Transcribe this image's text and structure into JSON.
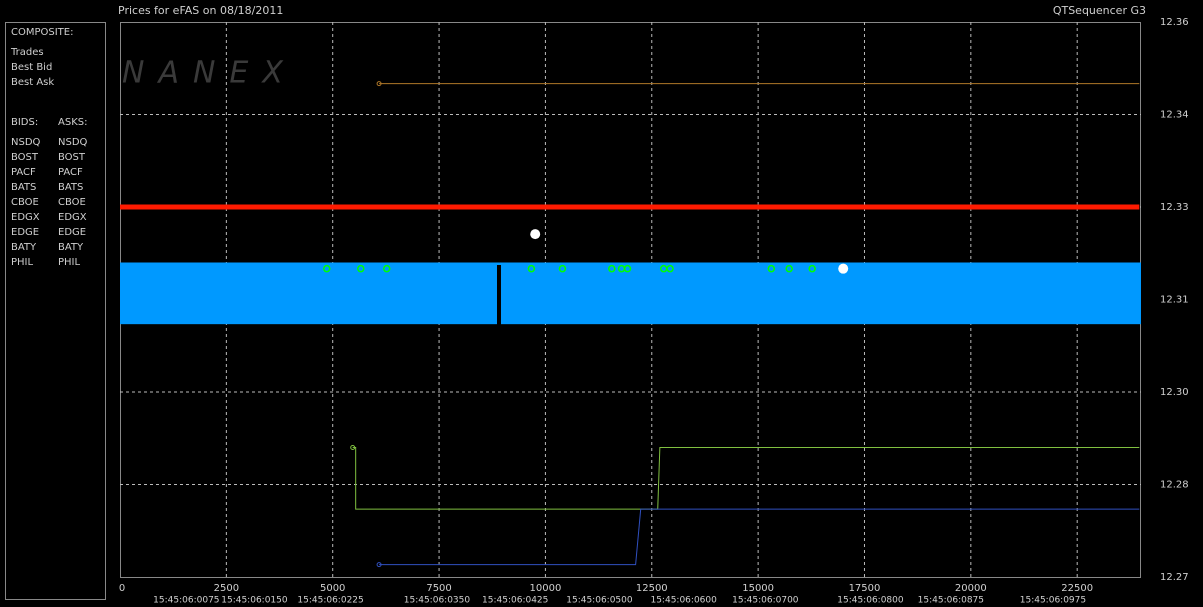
{
  "chart_data": {
    "type": "line",
    "title": "Prices for  eFAS  on  08/18/2011",
    "app_name": "QTSequencer G3",
    "watermark": "NANEX",
    "legend": {
      "composite_header": "COMPOSITE:",
      "composite": [
        {
          "label": "Trades",
          "color": "#ffffff"
        },
        {
          "label": "Best Bid",
          "color": "#00ff00"
        },
        {
          "label": "Best Ask",
          "color": "#ff2020"
        }
      ],
      "bids_header": "BIDS:",
      "asks_header": "ASKS:",
      "exchanges": [
        {
          "name": "NSDQ",
          "bid_color": "#4a7cff",
          "ask_color": "#ff9040"
        },
        {
          "name": "BOST",
          "bid_color": "#90e070",
          "ask_color": "#f08060"
        },
        {
          "name": "PACF",
          "bid_color": "#40e0e0",
          "ask_color": "#ffff60"
        },
        {
          "name": "BATS",
          "bid_color": "#80c0ff",
          "ask_color": "#ffe080"
        },
        {
          "name": "CBOE",
          "bid_color": "#3050c0",
          "ask_color": "#c8c8c8"
        },
        {
          "name": "EDGX",
          "bid_color": "#30a030",
          "ask_color": "#808080"
        },
        {
          "name": "EDGE",
          "bid_color": "#60c060",
          "ask_color": "#e08060"
        },
        {
          "name": "BATY",
          "bid_color": "#6080ff",
          "ask_color": "#d06040"
        },
        {
          "name": "PHIL",
          "bid_color": "#70a030",
          "ask_color": "#e04060"
        }
      ]
    },
    "xlim": [
      0,
      24000
    ],
    "xticks": [
      0,
      2500,
      5000,
      7500,
      10000,
      12500,
      15000,
      17500,
      20000,
      22500
    ],
    "time_ticks": [
      {
        "value": 1560,
        "label": "15:45:06:0075"
      },
      {
        "value": 3160,
        "label": "15:45:06:0150"
      },
      {
        "value": 4950,
        "label": "15:45:06:0225"
      },
      {
        "value": 7450,
        "label": "15:45:06:0350"
      },
      {
        "value": 9290,
        "label": "15:45:06:0425"
      },
      {
        "value": 11270,
        "label": "15:45:06:0500"
      },
      {
        "value": 13250,
        "label": "15:45:06:0600"
      },
      {
        "value": 15170,
        "label": "15:45:06:0700"
      },
      {
        "value": 17640,
        "label": "15:45:06:0800"
      },
      {
        "value": 19530,
        "label": "15:45:06:0875"
      },
      {
        "value": 21930,
        "label": "15:45:06:0975"
      }
    ],
    "ylim": [
      12.27,
      12.36
    ],
    "yticks": [
      12.36,
      {
        "value": 12.345,
        "label": "12.34"
      },
      12.33,
      {
        "value": 12.315,
        "label": "12.31"
      },
      {
        "value": 12.3,
        "label": "12.30"
      },
      {
        "value": 12.285,
        "label": "12.28"
      },
      12.27
    ],
    "grid": true,
    "series": [
      {
        "kind": "band",
        "color": "#0099ff",
        "x": [
          0,
          24000
        ],
        "low": [
          12.311,
          12.311
        ],
        "values": [
          12.321,
          12.321
        ]
      },
      {
        "kind": "thick-line",
        "color": "#ff1a00",
        "x": [
          0,
          23960
        ],
        "values": [
          12.33,
          12.33
        ]
      },
      {
        "kind": "line",
        "color": "#b07828",
        "x": [
          6090,
          23960
        ],
        "values": [
          12.35,
          12.35
        ]
      },
      {
        "kind": "line",
        "color": "#80c040",
        "x": [
          5470,
          5540,
          5540,
          12640,
          12690,
          23960
        ],
        "values": [
          12.291,
          12.291,
          12.281,
          12.281,
          12.291,
          12.291
        ]
      },
      {
        "kind": "line",
        "color": "#3050c0",
        "x": [
          6090,
          12120,
          12240,
          23960
        ],
        "values": [
          12.272,
          12.272,
          12.281,
          12.281
        ]
      },
      {
        "kind": "markers",
        "color": "#00ff00",
        "x": [
          4860,
          5660,
          6270,
          9670,
          10400,
          11560,
          11790,
          11930,
          12780,
          12930,
          15310,
          15730,
          16270
        ],
        "values": [
          12.32,
          12.32,
          12.32,
          12.32,
          12.32,
          12.32,
          12.32,
          12.32,
          12.32,
          12.32,
          12.32,
          12.32,
          12.32
        ]
      },
      {
        "kind": "dots",
        "color": "#ffffff",
        "x": [
          9760,
          17000
        ],
        "values": [
          12.3256,
          12.32
        ]
      }
    ]
  }
}
